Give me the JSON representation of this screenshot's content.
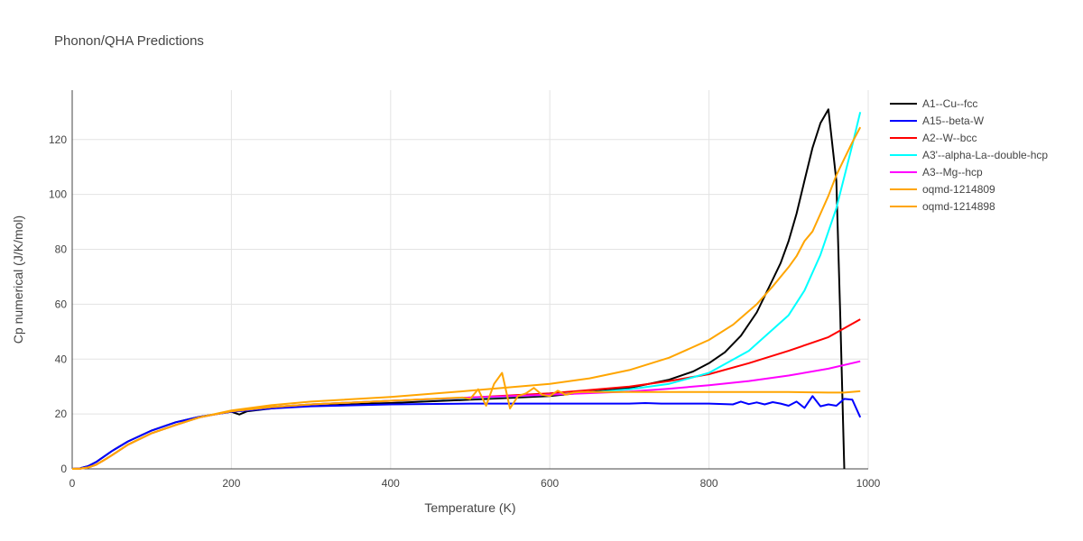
{
  "chart_data": {
    "type": "line",
    "title": "Phonon/QHA Predictions",
    "xlabel": "Temperature (K)",
    "ylabel": "Cp numerical (J/K/mol)",
    "xlim": [
      0,
      1000
    ],
    "ylim": [
      0,
      138
    ],
    "xticks": [
      0,
      200,
      400,
      600,
      800,
      1000
    ],
    "yticks": [
      0,
      20,
      40,
      60,
      80,
      100,
      120
    ],
    "grid": true,
    "legend_position": "top-right",
    "series": [
      {
        "name": "A1--Cu--fcc",
        "color": "#000000",
        "x": [
          0,
          10,
          20,
          30,
          40,
          50,
          70,
          100,
          130,
          160,
          200,
          210,
          220,
          250,
          300,
          400,
          500,
          600,
          700,
          750,
          780,
          800,
          820,
          840,
          860,
          880,
          890,
          900,
          910,
          920,
          930,
          940,
          950,
          960,
          965,
          970
        ],
        "y": [
          0,
          0.2,
          1,
          2.5,
          4.5,
          6.5,
          10,
          14,
          17,
          19,
          20.8,
          19.8,
          21,
          22,
          23.3,
          24,
          25.2,
          26.5,
          29.5,
          32.5,
          35.5,
          38.5,
          42.5,
          48.5,
          57,
          69,
          75,
          83,
          93,
          105,
          117,
          126,
          131,
          105,
          55,
          0
        ]
      },
      {
        "name": "A15--beta-W",
        "color": "#0000ff",
        "x": [
          0,
          10,
          20,
          30,
          40,
          50,
          70,
          100,
          130,
          160,
          200,
          250,
          300,
          400,
          500,
          600,
          700,
          720,
          740,
          760,
          800,
          830,
          840,
          850,
          860,
          870,
          880,
          890,
          900,
          910,
          920,
          930,
          940,
          950,
          960,
          970,
          980,
          990
        ],
        "y": [
          0,
          0.2,
          1,
          2.5,
          4.5,
          6.5,
          10,
          14,
          17,
          19,
          20.8,
          22,
          22.8,
          23.5,
          23.8,
          23.8,
          23.8,
          24,
          23.8,
          23.8,
          23.8,
          23.5,
          24.5,
          23.6,
          24.2,
          23.5,
          24.3,
          23.8,
          23,
          24.5,
          22.2,
          26.5,
          22.8,
          23.5,
          23,
          25.5,
          25.2,
          18.8
        ]
      },
      {
        "name": "A2--W--bcc",
        "color": "#ff0000",
        "x": [
          0,
          10,
          20,
          30,
          40,
          50,
          70,
          100,
          130,
          160,
          200,
          250,
          300,
          400,
          500,
          600,
          700,
          750,
          800,
          850,
          900,
          950,
          990
        ],
        "y": [
          0,
          0.1,
          0.5,
          1.5,
          3.2,
          5,
          8.8,
          13,
          16,
          18.8,
          21,
          22.5,
          23.5,
          24.8,
          26,
          27.5,
          30,
          32,
          34.5,
          38.5,
          43,
          48,
          54.5
        ]
      },
      {
        "name": "A3'--alpha-La--double-hcp",
        "color": "#00ffff",
        "x": [
          0,
          10,
          20,
          30,
          40,
          50,
          70,
          100,
          130,
          160,
          200,
          250,
          300,
          400,
          500,
          600,
          650,
          700,
          750,
          800,
          850,
          900,
          920,
          940,
          960,
          980,
          990
        ],
        "y": [
          0,
          0.1,
          0.5,
          1.5,
          3.2,
          5,
          8.8,
          13,
          16,
          18.8,
          21,
          22.5,
          23.5,
          24.8,
          25.8,
          27,
          27.8,
          29,
          31,
          35,
          43,
          56,
          65,
          78,
          95,
          118,
          130
        ]
      },
      {
        "name": "A3--Mg--hcp",
        "color": "#ff00ff",
        "x": [
          0,
          10,
          20,
          30,
          40,
          50,
          70,
          100,
          130,
          160,
          200,
          250,
          300,
          400,
          500,
          600,
          700,
          750,
          800,
          850,
          900,
          950,
          990
        ],
        "y": [
          0,
          0.1,
          0.5,
          1.5,
          3.2,
          5,
          8.8,
          13,
          16,
          18.8,
          21,
          22.5,
          23.5,
          24.8,
          26,
          27,
          28.2,
          29.2,
          30.5,
          32,
          34,
          36.5,
          39.2
        ]
      },
      {
        "name": "oqmd-1214809",
        "color": "#ffa500",
        "x": [
          0,
          10,
          20,
          30,
          40,
          50,
          70,
          100,
          130,
          160,
          200,
          250,
          300,
          400,
          490,
          500,
          510,
          520,
          530,
          540,
          550,
          560,
          570,
          580,
          590,
          600,
          610,
          620,
          630,
          640,
          650,
          700,
          800,
          850,
          900,
          950,
          970,
          990
        ],
        "y": [
          0,
          0.1,
          0.5,
          1.5,
          3.2,
          5,
          8.8,
          13,
          16,
          18.8,
          21,
          22.5,
          23.5,
          24.8,
          26,
          25.5,
          29,
          23,
          31,
          35,
          22,
          26.5,
          27.5,
          29.5,
          27,
          26.5,
          28.5,
          27,
          27.8,
          28,
          28,
          28,
          28,
          28,
          28,
          27.8,
          27.8,
          28.3
        ]
      },
      {
        "name": "oqmd-1214898",
        "color": "#ffa500",
        "x": [
          0,
          10,
          20,
          30,
          40,
          50,
          70,
          100,
          130,
          160,
          200,
          250,
          300,
          400,
          500,
          600,
          650,
          700,
          750,
          800,
          830,
          860,
          880,
          900,
          910,
          920,
          930,
          940,
          950,
          960,
          970,
          980,
          990
        ],
        "y": [
          0,
          0.1,
          0.5,
          1.5,
          3.2,
          5,
          8.8,
          13,
          16,
          18.8,
          21.3,
          23.2,
          24.5,
          26.2,
          28.5,
          31,
          33,
          36,
          40.5,
          47,
          52.5,
          60,
          66.5,
          73.5,
          77.5,
          83,
          86.5,
          93,
          99.5,
          107,
          113,
          119,
          124.5
        ]
      }
    ]
  }
}
